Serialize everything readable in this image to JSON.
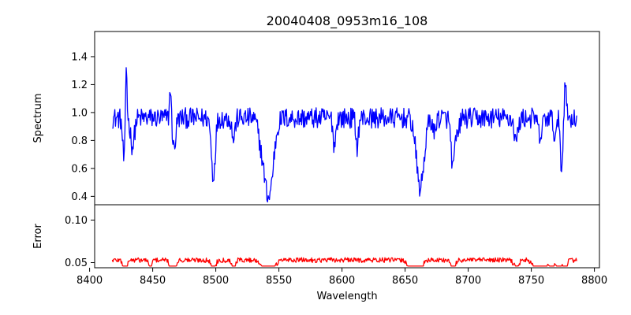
{
  "colors": {
    "spectrum": "#0000ff",
    "error": "#ff0000",
    "axes": "#000000",
    "background": "#ffffff"
  },
  "chart_data": [
    {
      "type": "line",
      "title": "20040408_0953m16_108",
      "ylabel": "Spectrum",
      "xlabel": "",
      "xlim": [
        8404,
        8804
      ],
      "ylim": [
        0.34,
        1.58
      ],
      "yticks": [
        0.4,
        0.6,
        0.8,
        1.0,
        1.2,
        1.4
      ],
      "ytick_labels": [
        "0.4",
        "0.6",
        "0.8",
        "1.0",
        "1.2",
        "1.4"
      ],
      "grid": false,
      "legend": "none",
      "features": {
        "x_range": [
          8418,
          8786
        ],
        "baseline": 0.96,
        "noise": 0.065,
        "lines": [
          {
            "center": 8429.0,
            "depth": -0.52,
            "width": 0.6
          },
          {
            "center": 8427.5,
            "depth": 0.32,
            "width": 1.2
          },
          {
            "center": 8434.0,
            "depth": 0.2,
            "width": 1.5
          },
          {
            "center": 8464.0,
            "depth": -0.24,
            "width": 0.6
          },
          {
            "center": 8467.0,
            "depth": 0.22,
            "width": 1.2
          },
          {
            "center": 8498.0,
            "depth": 0.42,
            "width": 1.5
          },
          {
            "center": 8514.0,
            "depth": 0.15,
            "width": 1.2
          },
          {
            "center": 8542.0,
            "depth": 0.56,
            "width": 3.5
          },
          {
            "center": 8536.0,
            "depth": 0.12,
            "width": 2.5
          },
          {
            "center": 8662.0,
            "depth": 0.5,
            "width": 3.0
          },
          {
            "center": 8688.0,
            "depth": 0.36,
            "width": 1.5
          },
          {
            "center": 8692.0,
            "depth": 0.12,
            "width": 1.0
          },
          {
            "center": 8594.0,
            "depth": 0.2,
            "width": 1.0
          },
          {
            "center": 8612.0,
            "depth": 0.2,
            "width": 1.0
          },
          {
            "center": 8673.0,
            "depth": 0.12,
            "width": 1.0
          },
          {
            "center": 8738.0,
            "depth": 0.16,
            "width": 1.5
          },
          {
            "center": 8757.0,
            "depth": 0.14,
            "width": 1.5
          },
          {
            "center": 8774.0,
            "depth": 0.4,
            "width": 0.8
          },
          {
            "center": 8777.0,
            "depth": -0.3,
            "width": 0.7
          },
          {
            "center": 8769.0,
            "depth": 0.14,
            "width": 1.2
          }
        ]
      }
    },
    {
      "type": "line",
      "title": "",
      "ylabel": "Error",
      "xlabel": "Wavelength",
      "xlim": [
        8404,
        8804
      ],
      "ylim": [
        0.044,
        0.118
      ],
      "xticks": [
        8400,
        8450,
        8500,
        8550,
        8600,
        8650,
        8700,
        8750,
        8800
      ],
      "xtick_labels": [
        "8400",
        "8450",
        "8500",
        "8550",
        "8600",
        "8650",
        "8700",
        "8750",
        "8800"
      ],
      "yticks": [
        0.05,
        0.1
      ],
      "ytick_labels": [
        "0.05",
        "0.10"
      ],
      "grid": false,
      "legend": "none",
      "features": {
        "x_range": [
          8418,
          8786
        ],
        "baseline": 0.053,
        "noise": 0.0025,
        "lines": [
          {
            "center": 8429.0,
            "depth": 0.065,
            "width": 0.6
          },
          {
            "center": 8427.5,
            "depth": 0.012,
            "width": 1.2
          },
          {
            "center": 8448.0,
            "depth": 0.014,
            "width": 1.0
          },
          {
            "center": 8464.0,
            "depth": 0.033,
            "width": 0.7
          },
          {
            "center": 8467.0,
            "depth": 0.01,
            "width": 1.5
          },
          {
            "center": 8498.0,
            "depth": 0.016,
            "width": 1.5
          },
          {
            "center": 8514.0,
            "depth": 0.012,
            "width": 1.2
          },
          {
            "center": 8542.0,
            "depth": 0.025,
            "width": 3.5
          },
          {
            "center": 8662.0,
            "depth": 0.045,
            "width": 1.2
          },
          {
            "center": 8657.0,
            "depth": 0.015,
            "width": 3.5
          },
          {
            "center": 8688.0,
            "depth": 0.014,
            "width": 1.5
          },
          {
            "center": 8757.0,
            "depth": 0.028,
            "width": 3.5
          },
          {
            "center": 8766.0,
            "depth": 0.058,
            "width": 0.9
          },
          {
            "center": 8777.0,
            "depth": 0.056,
            "width": 0.8
          },
          {
            "center": 8772.0,
            "depth": 0.015,
            "width": 2.0
          },
          {
            "center": 8738.0,
            "depth": 0.008,
            "width": 2.0
          }
        ]
      }
    }
  ]
}
